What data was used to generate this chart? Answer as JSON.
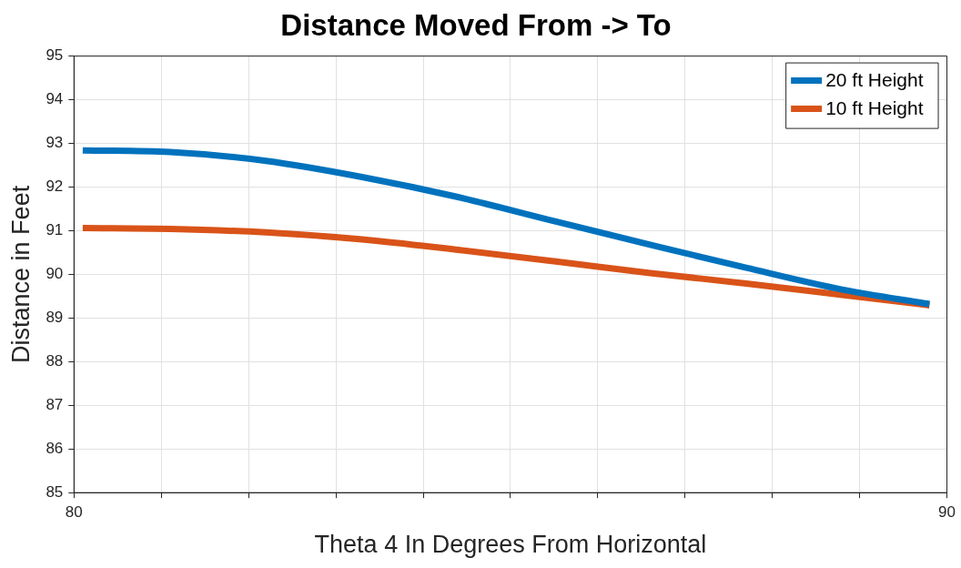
{
  "chart_data": {
    "type": "line",
    "title": "Distance Moved From -> To",
    "xlabel": "Theta 4 In Degrees From Horizontal",
    "ylabel": "Distance in Feet",
    "xlim": [
      80,
      90
    ],
    "xticks": [
      80,
      {
        "value": 81,
        "label": null
      },
      {
        "value": 82,
        "label": null
      },
      {
        "value": 83,
        "label": null
      },
      {
        "value": 84,
        "label": null
      },
      {
        "value": 85,
        "label": null
      },
      {
        "value": 86,
        "label": null
      },
      {
        "value": 87,
        "label": null
      },
      {
        "value": 88,
        "label": null
      },
      {
        "value": 89,
        "label": null
      },
      90
    ],
    "ylim": [
      85,
      95
    ],
    "yticks": [
      85,
      86,
      87,
      88,
      89,
      90,
      91,
      92,
      93,
      94,
      95
    ],
    "grid": true,
    "legend": "top right",
    "marker": "none",
    "line_style": "solid",
    "x": [
      80.1,
      81.1,
      82.2,
      83.3,
      84.4,
      85.5,
      86.6,
      87.7,
      88.8,
      89.8
    ],
    "series": [
      {
        "name": "20 ft Height",
        "color": "#0072bd",
        "values": [
          92.84,
          92.8,
          92.6,
          92.23,
          91.77,
          91.22,
          90.68,
          90.15,
          89.65,
          89.32
        ]
      },
      {
        "name": "10 ft Height",
        "color": "#d95319",
        "values": [
          91.06,
          91.04,
          90.96,
          90.8,
          90.56,
          90.3,
          90.03,
          89.79,
          89.53,
          89.29
        ]
      }
    ]
  }
}
